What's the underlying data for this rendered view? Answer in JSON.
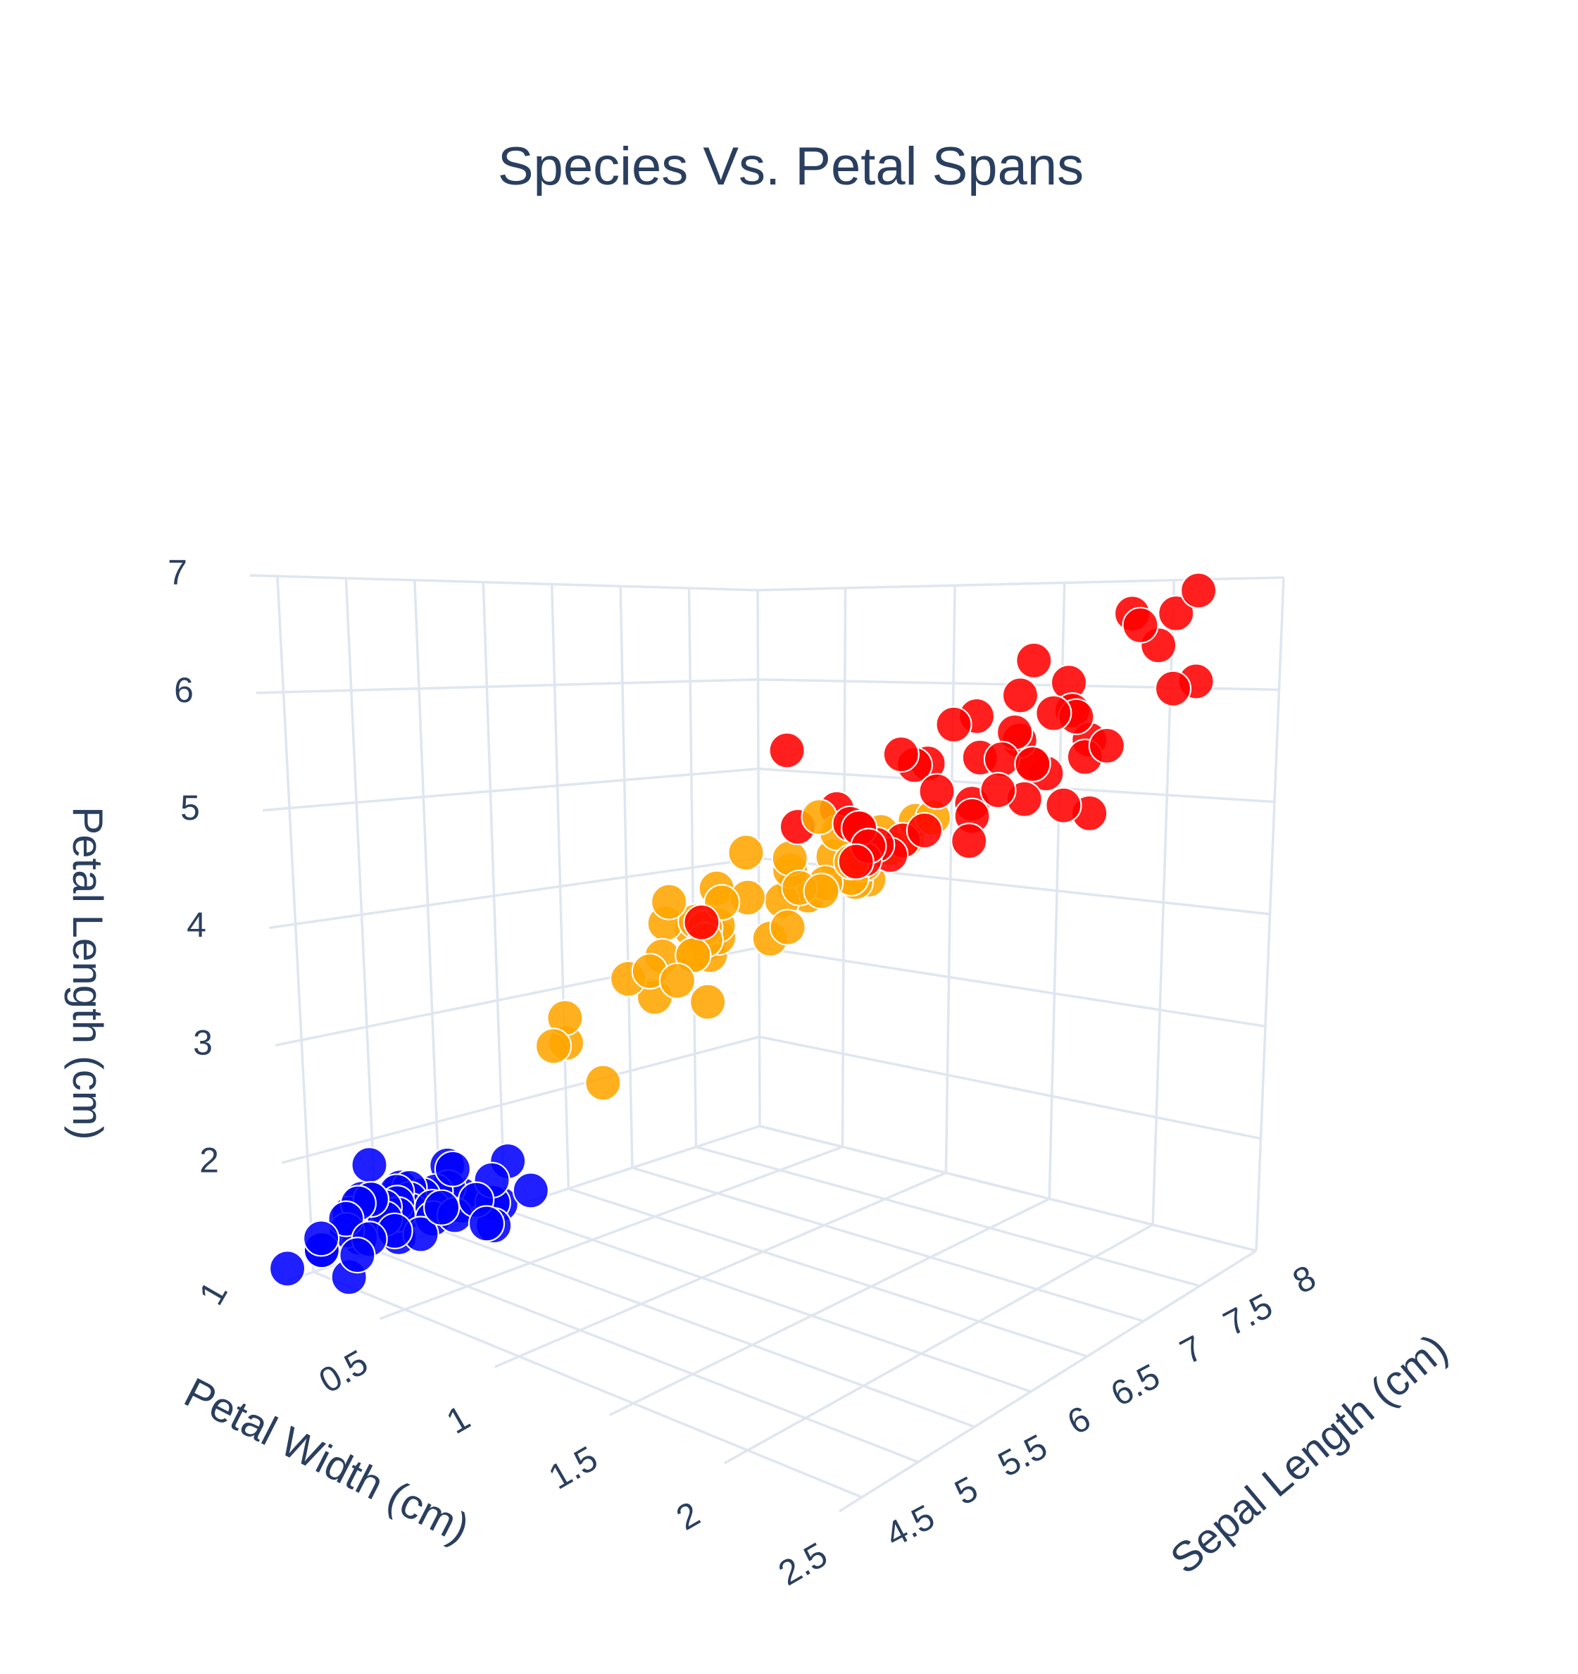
{
  "chart_data": {
    "type": "scatter3d",
    "title": "Species Vs. Petal Spans",
    "x_axis": {
      "label": "Sepal Length (cm)",
      "ticks": [
        "4.5",
        "5",
        "5.5",
        "6",
        "6.5",
        "7",
        "7.5",
        "8"
      ],
      "tick_values": [
        4.5,
        5,
        5.5,
        6,
        6.5,
        7,
        7.5,
        8
      ],
      "range": [
        4.3,
        8.0
      ]
    },
    "y_axis": {
      "label": "Petal Width (cm)",
      "ticks": [
        "0.5",
        "1",
        "1.5",
        "2",
        "2.5"
      ],
      "tick_values": [
        0.5,
        1,
        1.5,
        2,
        2.5
      ],
      "range": [
        0.1,
        2.5
      ]
    },
    "z_axis": {
      "label": "Petal Length (cm)",
      "ticks": [
        "1",
        "2",
        "3",
        "4",
        "5",
        "6",
        "7"
      ],
      "tick_values": [
        1,
        2,
        3,
        4,
        5,
        6,
        7
      ],
      "range": [
        1.0,
        7.0
      ]
    },
    "grid": true,
    "legend": "none",
    "series": [
      {
        "color": "#0000ff",
        "points": [
          [
            5.1,
            0.2,
            1.4
          ],
          [
            4.9,
            0.2,
            1.4
          ],
          [
            4.7,
            0.2,
            1.3
          ],
          [
            4.6,
            0.2,
            1.5
          ],
          [
            5.0,
            0.2,
            1.4
          ],
          [
            5.4,
            0.4,
            1.7
          ],
          [
            4.6,
            0.3,
            1.4
          ],
          [
            5.0,
            0.2,
            1.5
          ],
          [
            4.4,
            0.2,
            1.4
          ],
          [
            4.9,
            0.1,
            1.5
          ],
          [
            5.4,
            0.2,
            1.5
          ],
          [
            4.8,
            0.2,
            1.6
          ],
          [
            4.8,
            0.1,
            1.4
          ],
          [
            4.3,
            0.1,
            1.1
          ],
          [
            5.8,
            0.2,
            1.2
          ],
          [
            5.7,
            0.4,
            1.5
          ],
          [
            5.4,
            0.4,
            1.3
          ],
          [
            5.1,
            0.3,
            1.4
          ],
          [
            5.7,
            0.3,
            1.7
          ],
          [
            5.1,
            0.3,
            1.5
          ],
          [
            5.4,
            0.2,
            1.7
          ],
          [
            5.1,
            0.4,
            1.5
          ],
          [
            4.6,
            0.2,
            1.0
          ],
          [
            5.1,
            0.5,
            1.7
          ],
          [
            4.8,
            0.2,
            1.9
          ],
          [
            5.0,
            0.2,
            1.6
          ],
          [
            5.0,
            0.4,
            1.6
          ],
          [
            5.2,
            0.2,
            1.5
          ],
          [
            5.2,
            0.2,
            1.4
          ],
          [
            4.7,
            0.2,
            1.6
          ],
          [
            4.8,
            0.2,
            1.6
          ],
          [
            5.4,
            0.4,
            1.5
          ],
          [
            5.2,
            0.1,
            1.5
          ],
          [
            5.5,
            0.2,
            1.4
          ],
          [
            4.9,
            0.2,
            1.5
          ],
          [
            5.0,
            0.2,
            1.2
          ],
          [
            5.5,
            0.2,
            1.3
          ],
          [
            4.9,
            0.1,
            1.4
          ],
          [
            4.4,
            0.2,
            1.3
          ],
          [
            5.1,
            0.2,
            1.5
          ],
          [
            5.0,
            0.3,
            1.3
          ],
          [
            4.5,
            0.3,
            1.3
          ],
          [
            4.4,
            0.2,
            1.3
          ],
          [
            5.0,
            0.6,
            1.6
          ],
          [
            5.1,
            0.4,
            1.9
          ],
          [
            4.8,
            0.3,
            1.4
          ],
          [
            5.1,
            0.2,
            1.6
          ],
          [
            4.6,
            0.2,
            1.4
          ],
          [
            5.3,
            0.2,
            1.5
          ],
          [
            5.0,
            0.2,
            1.4
          ]
        ]
      },
      {
        "color": "#ffa500",
        "points": [
          [
            7.0,
            1.4,
            4.7
          ],
          [
            6.4,
            1.5,
            4.5
          ],
          [
            6.9,
            1.5,
            4.9
          ],
          [
            5.5,
            1.3,
            4.0
          ],
          [
            6.5,
            1.5,
            4.6
          ],
          [
            5.7,
            1.3,
            4.5
          ],
          [
            6.3,
            1.6,
            4.7
          ],
          [
            4.9,
            1.0,
            3.3
          ],
          [
            6.6,
            1.3,
            4.6
          ],
          [
            5.2,
            1.4,
            3.9
          ],
          [
            5.0,
            1.0,
            3.5
          ],
          [
            5.9,
            1.5,
            4.2
          ],
          [
            6.0,
            1.0,
            4.0
          ],
          [
            6.1,
            1.4,
            4.7
          ],
          [
            5.6,
            1.3,
            3.6
          ],
          [
            6.7,
            1.4,
            4.4
          ],
          [
            5.6,
            1.5,
            4.5
          ],
          [
            5.8,
            1.0,
            4.1
          ],
          [
            6.2,
            1.5,
            4.5
          ],
          [
            5.6,
            1.1,
            3.9
          ],
          [
            5.9,
            1.8,
            4.8
          ],
          [
            6.1,
            1.3,
            4.0
          ],
          [
            6.3,
            1.5,
            4.9
          ],
          [
            6.1,
            1.2,
            4.7
          ],
          [
            6.4,
            1.3,
            4.3
          ],
          [
            6.6,
            1.4,
            4.4
          ],
          [
            6.8,
            1.4,
            4.8
          ],
          [
            6.7,
            1.7,
            5.0
          ],
          [
            6.0,
            1.5,
            4.5
          ],
          [
            5.7,
            1.0,
            3.5
          ],
          [
            5.5,
            1.1,
            3.8
          ],
          [
            5.5,
            1.0,
            3.7
          ],
          [
            5.8,
            1.2,
            3.9
          ],
          [
            6.0,
            1.6,
            5.1
          ],
          [
            5.4,
            1.5,
            4.5
          ],
          [
            6.0,
            1.6,
            4.5
          ],
          [
            6.7,
            1.5,
            4.7
          ],
          [
            6.3,
            1.3,
            4.4
          ],
          [
            5.6,
            1.3,
            4.1
          ],
          [
            5.5,
            1.3,
            4.0
          ],
          [
            5.5,
            1.2,
            4.4
          ],
          [
            6.1,
            1.4,
            4.6
          ],
          [
            5.8,
            1.2,
            4.0
          ],
          [
            5.0,
            1.0,
            3.3
          ],
          [
            5.6,
            1.3,
            4.2
          ],
          [
            5.7,
            1.2,
            4.2
          ],
          [
            5.7,
            1.3,
            4.2
          ],
          [
            6.2,
            1.3,
            4.3
          ],
          [
            5.1,
            1.1,
            3.0
          ],
          [
            5.7,
            1.3,
            4.1
          ]
        ]
      },
      {
        "color": "#ff0000",
        "points": [
          [
            6.3,
            2.5,
            6.0
          ],
          [
            5.8,
            1.9,
            5.1
          ],
          [
            7.1,
            2.1,
            5.9
          ],
          [
            6.3,
            1.8,
            5.6
          ],
          [
            6.5,
            2.2,
            5.8
          ],
          [
            7.6,
            2.1,
            6.6
          ],
          [
            4.9,
            1.7,
            4.5
          ],
          [
            7.3,
            1.8,
            6.3
          ],
          [
            6.7,
            1.8,
            5.8
          ],
          [
            7.2,
            2.5,
            6.1
          ],
          [
            6.5,
            2.0,
            5.1
          ],
          [
            6.4,
            1.9,
            5.3
          ],
          [
            6.8,
            2.1,
            5.5
          ],
          [
            5.7,
            2.0,
            5.0
          ],
          [
            5.8,
            2.4,
            5.1
          ],
          [
            6.4,
            2.3,
            5.3
          ],
          [
            6.5,
            1.8,
            5.5
          ],
          [
            7.7,
            2.2,
            6.7
          ],
          [
            7.7,
            2.3,
            6.9
          ],
          [
            6.0,
            1.5,
            5.0
          ],
          [
            6.9,
            2.3,
            5.7
          ],
          [
            5.6,
            2.0,
            4.9
          ],
          [
            7.7,
            2.0,
            6.7
          ],
          [
            6.3,
            1.8,
            4.9
          ],
          [
            6.7,
            2.1,
            5.7
          ],
          [
            7.2,
            1.8,
            6.0
          ],
          [
            6.2,
            1.8,
            4.8
          ],
          [
            6.1,
            1.8,
            4.9
          ],
          [
            6.4,
            2.1,
            5.6
          ],
          [
            7.2,
            1.6,
            5.8
          ],
          [
            7.4,
            1.9,
            6.1
          ],
          [
            7.9,
            2.0,
            6.4
          ],
          [
            6.4,
            2.2,
            5.6
          ],
          [
            6.3,
            1.5,
            5.1
          ],
          [
            6.1,
            1.4,
            5.6
          ],
          [
            7.7,
            2.3,
            6.1
          ],
          [
            6.3,
            2.4,
            5.6
          ],
          [
            6.4,
            1.8,
            5.5
          ],
          [
            6.0,
            1.8,
            4.8
          ],
          [
            6.9,
            2.1,
            5.4
          ],
          [
            6.7,
            2.4,
            5.6
          ],
          [
            6.9,
            2.3,
            5.1
          ],
          [
            5.8,
            1.9,
            5.1
          ],
          [
            6.8,
            2.3,
            5.9
          ],
          [
            6.7,
            2.5,
            5.7
          ],
          [
            6.7,
            2.3,
            5.2
          ],
          [
            6.3,
            1.9,
            5.0
          ],
          [
            6.5,
            2.0,
            5.2
          ],
          [
            6.2,
            2.3,
            5.4
          ],
          [
            5.9,
            1.8,
            5.1
          ]
        ]
      }
    ]
  }
}
